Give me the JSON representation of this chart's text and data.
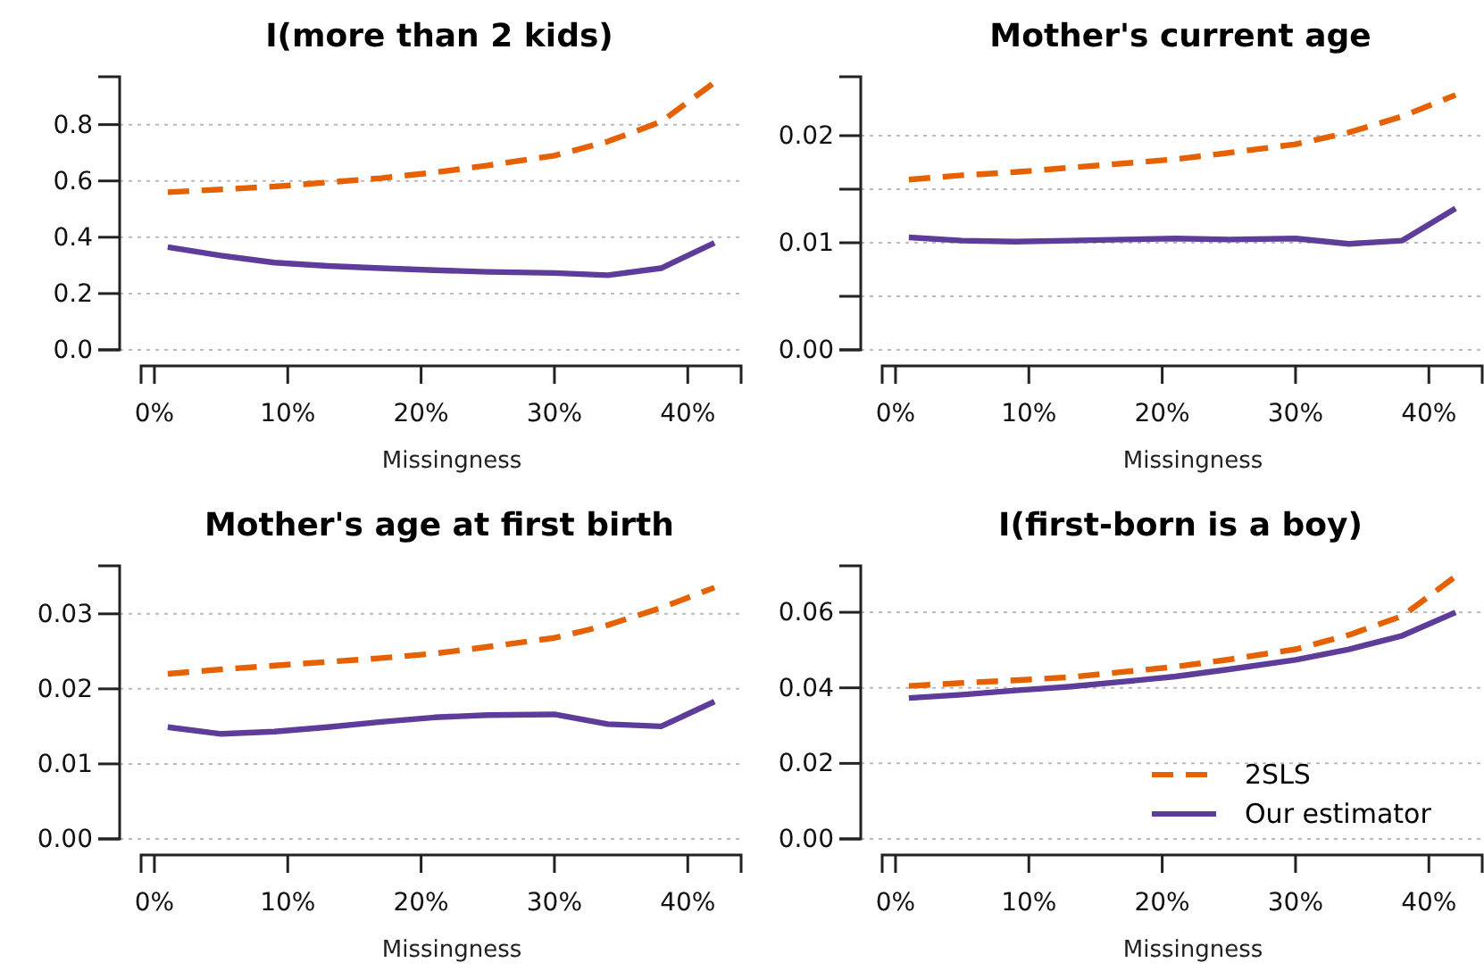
{
  "chart_data": [
    {
      "type": "line",
      "title": "I(more than 2 kids)",
      "xlabel": "Missingness",
      "x": [
        1,
        5,
        9,
        13,
        17,
        21,
        25,
        30,
        34,
        38,
        42
      ],
      "xlim": [
        -1,
        44
      ],
      "xticks": [
        {
          "value": 0,
          "label": "0%"
        },
        {
          "value": 10,
          "label": "10%"
        },
        {
          "value": 20,
          "label": "20%"
        },
        {
          "value": 30,
          "label": "30%"
        },
        {
          "value": 40,
          "label": "40%"
        }
      ],
      "ylim": [
        0,
        0.97
      ],
      "yticks": [
        {
          "value": 0,
          "label": "0.0"
        },
        0.2,
        0.4,
        0.6,
        0.8
      ],
      "grid": "y",
      "series": [
        {
          "color": "#e66101",
          "line_style": "dashed",
          "values": [
            0.56,
            0.57,
            0.58,
            0.595,
            0.61,
            0.63,
            0.655,
            0.69,
            0.74,
            0.81,
            0.95
          ]
        },
        {
          "color": "#5e3c99",
          "line_style": "solid",
          "values": [
            0.365,
            0.335,
            0.31,
            0.298,
            0.29,
            0.283,
            0.277,
            0.273,
            0.265,
            0.29,
            0.38
          ]
        }
      ]
    },
    {
      "type": "line",
      "title": "Mother's current age",
      "xlabel": "Missingness",
      "x": [
        1,
        5,
        9,
        13,
        17,
        21,
        25,
        30,
        34,
        38,
        42
      ],
      "xlim": [
        -1,
        44
      ],
      "xticks": [
        {
          "value": 0,
          "label": "0%"
        },
        {
          "value": 10,
          "label": "10%"
        },
        {
          "value": 20,
          "label": "20%"
        },
        {
          "value": 30,
          "label": "30%"
        },
        {
          "value": 40,
          "label": "40%"
        }
      ],
      "ylim": [
        0,
        0.0255
      ],
      "yticks": [
        {
          "value": 0,
          "label": "0.00"
        },
        {
          "value": 0.005,
          "label": null
        },
        0.01,
        {
          "value": 0.015,
          "label": null
        },
        0.02
      ],
      "grid": "y",
      "series": [
        {
          "color": "#e66101",
          "line_style": "dashed",
          "values": [
            0.0159,
            0.0163,
            0.0166,
            0.017,
            0.0174,
            0.0178,
            0.0184,
            0.0192,
            0.0203,
            0.0218,
            0.0238
          ]
        },
        {
          "color": "#5e3c99",
          "line_style": "solid",
          "values": [
            0.0105,
            0.0102,
            0.0101,
            0.0102,
            0.0103,
            0.0104,
            0.0103,
            0.0104,
            0.0099,
            0.0102,
            0.0132
          ]
        }
      ]
    },
    {
      "type": "line",
      "title": "Mother's age at first birth",
      "xlabel": "Missingness",
      "x": [
        1,
        5,
        9,
        13,
        17,
        21,
        25,
        30,
        34,
        38,
        42
      ],
      "xlim": [
        -1,
        44
      ],
      "xticks": [
        {
          "value": 0,
          "label": "0%"
        },
        {
          "value": 10,
          "label": "10%"
        },
        {
          "value": 20,
          "label": "20%"
        },
        {
          "value": 30,
          "label": "30%"
        },
        {
          "value": 40,
          "label": "40%"
        }
      ],
      "ylim": [
        0,
        0.0364
      ],
      "yticks": [
        {
          "value": 0,
          "label": "0.00"
        },
        0.01,
        0.02,
        0.03
      ],
      "grid": "y",
      "series": [
        {
          "color": "#e66101",
          "line_style": "dashed",
          "values": [
            0.022,
            0.0226,
            0.0231,
            0.0236,
            0.0241,
            0.0247,
            0.0256,
            0.0268,
            0.0285,
            0.0308,
            0.0335
          ]
        },
        {
          "color": "#5e3c99",
          "line_style": "solid",
          "values": [
            0.0149,
            0.014,
            0.0143,
            0.0149,
            0.0156,
            0.0162,
            0.0165,
            0.0166,
            0.0153,
            0.015,
            0.0183
          ]
        }
      ]
    },
    {
      "type": "line",
      "title": "I(first-born is a boy)",
      "xlabel": "Missingness",
      "x": [
        1,
        5,
        9,
        13,
        17,
        21,
        25,
        30,
        34,
        38,
        42
      ],
      "xlim": [
        -1,
        44
      ],
      "xticks": [
        {
          "value": 0,
          "label": "0%"
        },
        {
          "value": 10,
          "label": "10%"
        },
        {
          "value": 20,
          "label": "20%"
        },
        {
          "value": 30,
          "label": "30%"
        },
        {
          "value": 40,
          "label": "40%"
        }
      ],
      "ylim": [
        0,
        0.0723
      ],
      "yticks": [
        {
          "value": 0,
          "label": "0.00"
        },
        0.02,
        0.04,
        0.06
      ],
      "grid": "y",
      "legend": "bottom right",
      "series": [
        {
          "name": "2SLS",
          "color": "#e66101",
          "line_style": "dashed",
          "values": [
            0.0405,
            0.0413,
            0.042,
            0.0428,
            0.0442,
            0.0456,
            0.0475,
            0.0502,
            0.054,
            0.059,
            0.0695
          ]
        },
        {
          "name": "Our estimator",
          "color": "#5e3c99",
          "line_style": "solid",
          "values": [
            0.0373,
            0.0382,
            0.0393,
            0.0403,
            0.0416,
            0.043,
            0.0449,
            0.0474,
            0.0502,
            0.0538,
            0.06
          ]
        }
      ]
    }
  ]
}
